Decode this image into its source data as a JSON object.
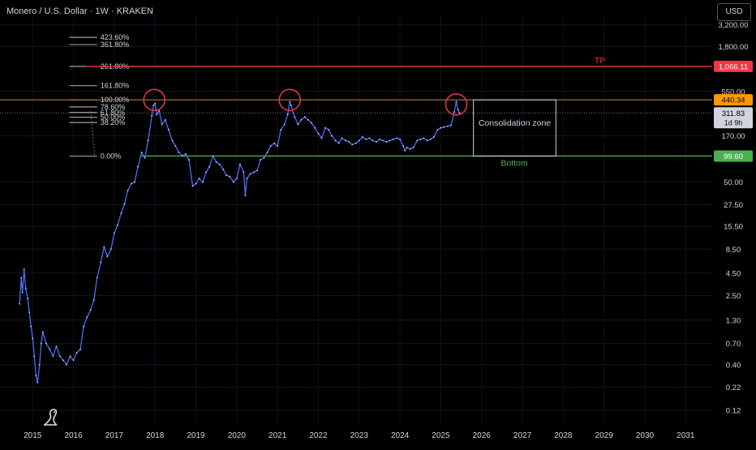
{
  "header": {
    "title": "Monero / U.S. Dollar · 1W · KRAKEN",
    "currency": "USD"
  },
  "logo_icon": "tradingview-dino-icon",
  "colors": {
    "background": "#000000",
    "price_line": "#4a6cf7",
    "tp_line": "#f23645",
    "bottom_line": "#4caf50",
    "fib_top_line": "#b08a56",
    "circle": "#f23645",
    "box": "#d1d4dc",
    "text": "#d1d4dc"
  },
  "chart_data": {
    "type": "line",
    "title": "Monero / U.S. Dollar · 1W · KRAKEN",
    "y_scale": "log",
    "ylim": [
      0.085,
      4200
    ],
    "xlim": [
      2014.2,
      2031.65
    ],
    "y_ticks": [
      {
        "value": 3200,
        "label": "3,200.00"
      },
      {
        "value": 1800,
        "label": "1,800.00"
      },
      {
        "value": 550,
        "label": "550.00"
      },
      {
        "value": 170,
        "label": "170.00"
      },
      {
        "value": 50,
        "label": "50.00"
      },
      {
        "value": 27.5,
        "label": "27.50"
      },
      {
        "value": 15.5,
        "label": "15.50"
      },
      {
        "value": 8.5,
        "label": "8.50"
      },
      {
        "value": 4.5,
        "label": "4.50"
      },
      {
        "value": 2.5,
        "label": "2.50"
      },
      {
        "value": 1.3,
        "label": "1.30"
      },
      {
        "value": 0.7,
        "label": "0.70"
      },
      {
        "value": 0.4,
        "label": "0.40"
      },
      {
        "value": 0.22,
        "label": "0.22"
      },
      {
        "value": 0.12,
        "label": "0.12"
      }
    ],
    "x_ticks": [
      {
        "value": 2015,
        "label": "2015"
      },
      {
        "value": 2016,
        "label": "2016"
      },
      {
        "value": 2017,
        "label": "2017"
      },
      {
        "value": 2018,
        "label": "2018"
      },
      {
        "value": 2019,
        "label": "2019"
      },
      {
        "value": 2020,
        "label": "2020"
      },
      {
        "value": 2021,
        "label": "2021"
      },
      {
        "value": 2022,
        "label": "2022"
      },
      {
        "value": 2023,
        "label": "2023"
      },
      {
        "value": 2024,
        "label": "2024"
      },
      {
        "value": 2025,
        "label": "2025"
      },
      {
        "value": 2026,
        "label": "2026"
      },
      {
        "value": 2027,
        "label": "2027"
      },
      {
        "value": 2028,
        "label": "2028"
      },
      {
        "value": 2029,
        "label": "2029"
      },
      {
        "value": 2030,
        "label": "2030"
      },
      {
        "value": 2031,
        "label": "2031"
      }
    ],
    "series": [
      {
        "points": [
          [
            2014.68,
            2.0
          ],
          [
            2014.72,
            4.0
          ],
          [
            2014.75,
            2.7
          ],
          [
            2014.79,
            5.0
          ],
          [
            2014.83,
            3.0
          ],
          [
            2014.88,
            2.3
          ],
          [
            2014.92,
            1.6
          ],
          [
            2014.96,
            1.1
          ],
          [
            2015.0,
            0.8
          ],
          [
            2015.04,
            0.5
          ],
          [
            2015.08,
            0.3
          ],
          [
            2015.12,
            0.25
          ],
          [
            2015.17,
            0.4
          ],
          [
            2015.21,
            0.7
          ],
          [
            2015.25,
            0.95
          ],
          [
            2015.33,
            0.7
          ],
          [
            2015.42,
            0.6
          ],
          [
            2015.5,
            0.5
          ],
          [
            2015.58,
            0.65
          ],
          [
            2015.67,
            0.5
          ],
          [
            2015.75,
            0.45
          ],
          [
            2015.83,
            0.4
          ],
          [
            2015.92,
            0.5
          ],
          [
            2016.0,
            0.45
          ],
          [
            2016.08,
            0.55
          ],
          [
            2016.17,
            0.6
          ],
          [
            2016.25,
            1.1
          ],
          [
            2016.33,
            1.4
          ],
          [
            2016.42,
            1.7
          ],
          [
            2016.5,
            2.2
          ],
          [
            2016.58,
            4.0
          ],
          [
            2016.67,
            6.0
          ],
          [
            2016.75,
            9.0
          ],
          [
            2016.83,
            7.0
          ],
          [
            2016.92,
            8.5
          ],
          [
            2017.0,
            13.0
          ],
          [
            2017.08,
            16.0
          ],
          [
            2017.17,
            22.0
          ],
          [
            2017.25,
            28.0
          ],
          [
            2017.33,
            40.0
          ],
          [
            2017.42,
            48.0
          ],
          [
            2017.5,
            50.0
          ],
          [
            2017.58,
            75.0
          ],
          [
            2017.67,
            110.0
          ],
          [
            2017.75,
            95.0
          ],
          [
            2017.83,
            150.0
          ],
          [
            2017.92,
            290.0
          ],
          [
            2017.96,
            380.0
          ],
          [
            2018.0,
            400.0
          ],
          [
            2018.04,
            300.0
          ],
          [
            2018.1,
            330.0
          ],
          [
            2018.17,
            230.0
          ],
          [
            2018.25,
            260.0
          ],
          [
            2018.33,
            200.0
          ],
          [
            2018.42,
            150.0
          ],
          [
            2018.5,
            130.0
          ],
          [
            2018.58,
            110.0
          ],
          [
            2018.67,
            100.0
          ],
          [
            2018.75,
            105.0
          ],
          [
            2018.83,
            90.0
          ],
          [
            2018.92,
            45.0
          ],
          [
            2019.0,
            48.0
          ],
          [
            2019.08,
            55.0
          ],
          [
            2019.17,
            50.0
          ],
          [
            2019.25,
            65.0
          ],
          [
            2019.33,
            75.0
          ],
          [
            2019.42,
            100.0
          ],
          [
            2019.5,
            85.0
          ],
          [
            2019.58,
            80.0
          ],
          [
            2019.67,
            70.0
          ],
          [
            2019.75,
            60.0
          ],
          [
            2019.83,
            58.0
          ],
          [
            2019.92,
            50.0
          ],
          [
            2020.0,
            55.0
          ],
          [
            2020.08,
            80.0
          ],
          [
            2020.17,
            65.0
          ],
          [
            2020.21,
            35.0
          ],
          [
            2020.25,
            55.0
          ],
          [
            2020.33,
            62.0
          ],
          [
            2020.42,
            65.0
          ],
          [
            2020.5,
            68.0
          ],
          [
            2020.58,
            90.0
          ],
          [
            2020.67,
            95.0
          ],
          [
            2020.75,
            110.0
          ],
          [
            2020.83,
            130.0
          ],
          [
            2020.92,
            140.0
          ],
          [
            2021.0,
            130.0
          ],
          [
            2021.08,
            200.0
          ],
          [
            2021.17,
            230.0
          ],
          [
            2021.25,
            300.0
          ],
          [
            2021.3,
            420.0
          ],
          [
            2021.33,
            380.0
          ],
          [
            2021.42,
            280.0
          ],
          [
            2021.5,
            230.0
          ],
          [
            2021.58,
            260.0
          ],
          [
            2021.67,
            280.0
          ],
          [
            2021.75,
            260.0
          ],
          [
            2021.83,
            240.0
          ],
          [
            2021.92,
            210.0
          ],
          [
            2022.0,
            180.0
          ],
          [
            2022.08,
            160.0
          ],
          [
            2022.17,
            210.0
          ],
          [
            2022.25,
            200.0
          ],
          [
            2022.33,
            170.0
          ],
          [
            2022.42,
            150.0
          ],
          [
            2022.5,
            140.0
          ],
          [
            2022.58,
            160.0
          ],
          [
            2022.67,
            150.0
          ],
          [
            2022.75,
            145.0
          ],
          [
            2022.83,
            135.0
          ],
          [
            2022.92,
            140.0
          ],
          [
            2023.0,
            150.0
          ],
          [
            2023.08,
            165.0
          ],
          [
            2023.17,
            155.0
          ],
          [
            2023.25,
            160.0
          ],
          [
            2023.33,
            150.0
          ],
          [
            2023.42,
            145.0
          ],
          [
            2023.5,
            155.0
          ],
          [
            2023.58,
            150.0
          ],
          [
            2023.67,
            145.0
          ],
          [
            2023.75,
            150.0
          ],
          [
            2023.83,
            155.0
          ],
          [
            2023.92,
            160.0
          ],
          [
            2024.0,
            155.0
          ],
          [
            2024.08,
            130.0
          ],
          [
            2024.12,
            115.0
          ],
          [
            2024.17,
            125.0
          ],
          [
            2024.25,
            120.0
          ],
          [
            2024.33,
            125.0
          ],
          [
            2024.42,
            150.0
          ],
          [
            2024.5,
            155.0
          ],
          [
            2024.58,
            160.0
          ],
          [
            2024.67,
            150.0
          ],
          [
            2024.75,
            155.0
          ],
          [
            2024.83,
            165.0
          ],
          [
            2024.92,
            200.0
          ],
          [
            2025.0,
            210.0
          ],
          [
            2025.08,
            215.0
          ],
          [
            2025.17,
            220.0
          ],
          [
            2025.25,
            225.0
          ],
          [
            2025.33,
            320.0
          ],
          [
            2025.38,
            420.0
          ],
          [
            2025.42,
            340.0
          ],
          [
            2025.46,
            311.83
          ]
        ]
      }
    ],
    "annotations": {
      "tp": {
        "value": 1066.11,
        "label": "TP",
        "price_label": "1,066.11"
      },
      "bottom": {
        "value": 99.6,
        "label": "Bottom",
        "price_label": "99.60"
      },
      "top": {
        "value": 440.34,
        "price_label": "440.34"
      },
      "last_price": {
        "value": 311.83,
        "price_label": "311.83",
        "countdown": "1d 9h"
      },
      "zone": {
        "label": "Consolidation zone",
        "x_start": 2025.8,
        "x_end": 2027.82,
        "y_low": 99.6,
        "y_high": 440.34
      },
      "fib_levels": [
        {
          "label": "423.60%",
          "value": 2300
        },
        {
          "label": "361.80%",
          "value": 1900
        },
        {
          "label": "261.80%",
          "value": 1066.11
        },
        {
          "label": "161.80%",
          "value": 640
        },
        {
          "label": "100.00%",
          "value": 440.34
        },
        {
          "label": "78.60%",
          "value": 365
        },
        {
          "label": "61.80%",
          "value": 315
        },
        {
          "label": "50.00%",
          "value": 278
        },
        {
          "label": "38.20%",
          "value": 242
        },
        {
          "label": "0.00%",
          "value": 99.6
        }
      ],
      "circles": [
        {
          "x": 2017.98,
          "y": 440
        },
        {
          "x": 2021.3,
          "y": 440
        },
        {
          "x": 2025.38,
          "y": 390
        }
      ]
    }
  }
}
